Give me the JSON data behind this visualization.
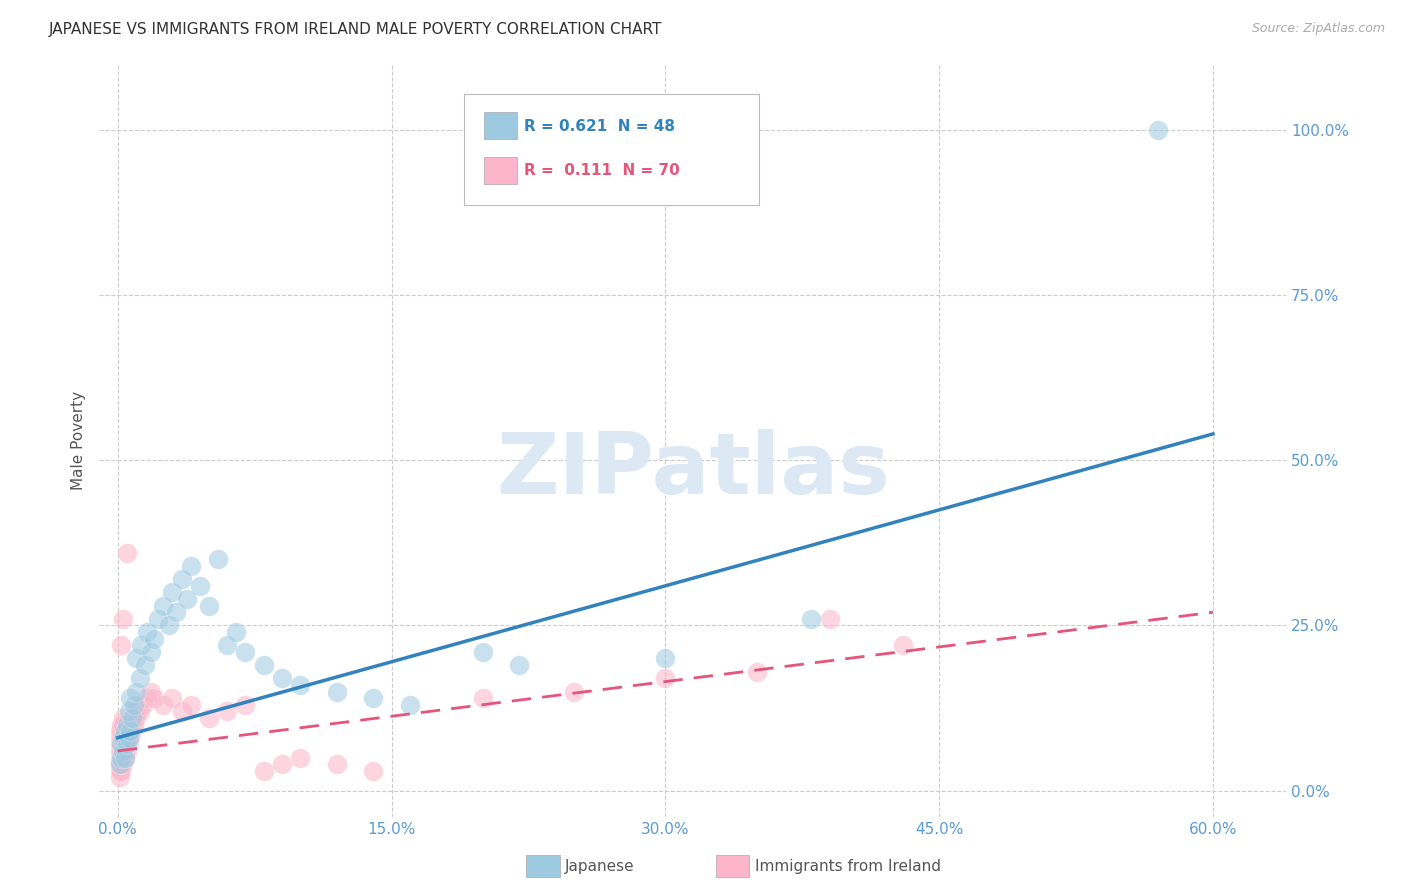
{
  "title": "JAPANESE VS IMMIGRANTS FROM IRELAND MALE POVERTY CORRELATION CHART",
  "source": "Source: ZipAtlas.com",
  "xlabel_ticks": [
    0.0,
    0.15,
    0.3,
    0.45,
    0.6
  ],
  "xlabel_labels": [
    "0.0%",
    "15.0%",
    "30.0%",
    "45.0%",
    "60.0%"
  ],
  "ylabel_ticks": [
    0.0,
    0.25,
    0.5,
    0.75,
    1.0
  ],
  "ylabel_labels": [
    "0.0%",
    "25.0%",
    "50.0%",
    "75.0%",
    "100.0%"
  ],
  "xlim": [
    -0.01,
    0.64
  ],
  "ylim": [
    -0.04,
    1.1
  ],
  "ylabel": "Male Poverty",
  "legend_japanese_R": "0.621",
  "legend_japanese_N": "48",
  "legend_ireland_R": "0.111",
  "legend_ireland_N": "70",
  "japanese_color": "#9ecae1",
  "ireland_color": "#fbb4c9",
  "japanese_line_color": "#3182bd",
  "ireland_line_color": "#e6547a",
  "watermark_text": "ZIPatlas",
  "japanese_points": [
    [
      0.001,
      0.04
    ],
    [
      0.002,
      0.05
    ],
    [
      0.002,
      0.07
    ],
    [
      0.003,
      0.06
    ],
    [
      0.003,
      0.08
    ],
    [
      0.004,
      0.05
    ],
    [
      0.004,
      0.09
    ],
    [
      0.005,
      0.07
    ],
    [
      0.005,
      0.1
    ],
    [
      0.006,
      0.08
    ],
    [
      0.006,
      0.12
    ],
    [
      0.007,
      0.09
    ],
    [
      0.007,
      0.14
    ],
    [
      0.008,
      0.11
    ],
    [
      0.009,
      0.13
    ],
    [
      0.01,
      0.15
    ],
    [
      0.01,
      0.2
    ],
    [
      0.012,
      0.17
    ],
    [
      0.013,
      0.22
    ],
    [
      0.015,
      0.19
    ],
    [
      0.016,
      0.24
    ],
    [
      0.018,
      0.21
    ],
    [
      0.02,
      0.23
    ],
    [
      0.022,
      0.26
    ],
    [
      0.025,
      0.28
    ],
    [
      0.028,
      0.25
    ],
    [
      0.03,
      0.3
    ],
    [
      0.032,
      0.27
    ],
    [
      0.035,
      0.32
    ],
    [
      0.038,
      0.29
    ],
    [
      0.04,
      0.34
    ],
    [
      0.045,
      0.31
    ],
    [
      0.05,
      0.28
    ],
    [
      0.055,
      0.35
    ],
    [
      0.06,
      0.22
    ],
    [
      0.065,
      0.24
    ],
    [
      0.07,
      0.21
    ],
    [
      0.08,
      0.19
    ],
    [
      0.09,
      0.17
    ],
    [
      0.1,
      0.16
    ],
    [
      0.12,
      0.15
    ],
    [
      0.14,
      0.14
    ],
    [
      0.16,
      0.13
    ],
    [
      0.2,
      0.21
    ],
    [
      0.22,
      0.19
    ],
    [
      0.3,
      0.2
    ],
    [
      0.38,
      0.26
    ],
    [
      0.57,
      1.0
    ]
  ],
  "ireland_points": [
    [
      0.001,
      0.02
    ],
    [
      0.001,
      0.03
    ],
    [
      0.001,
      0.04
    ],
    [
      0.001,
      0.05
    ],
    [
      0.001,
      0.06
    ],
    [
      0.001,
      0.07
    ],
    [
      0.001,
      0.08
    ],
    [
      0.001,
      0.09
    ],
    [
      0.002,
      0.03
    ],
    [
      0.002,
      0.04
    ],
    [
      0.002,
      0.05
    ],
    [
      0.002,
      0.06
    ],
    [
      0.002,
      0.07
    ],
    [
      0.002,
      0.08
    ],
    [
      0.002,
      0.09
    ],
    [
      0.002,
      0.1
    ],
    [
      0.003,
      0.04
    ],
    [
      0.003,
      0.05
    ],
    [
      0.003,
      0.06
    ],
    [
      0.003,
      0.07
    ],
    [
      0.003,
      0.08
    ],
    [
      0.003,
      0.09
    ],
    [
      0.003,
      0.1
    ],
    [
      0.003,
      0.11
    ],
    [
      0.004,
      0.05
    ],
    [
      0.004,
      0.06
    ],
    [
      0.004,
      0.07
    ],
    [
      0.004,
      0.08
    ],
    [
      0.004,
      0.09
    ],
    [
      0.005,
      0.06
    ],
    [
      0.005,
      0.07
    ],
    [
      0.005,
      0.08
    ],
    [
      0.005,
      0.36
    ],
    [
      0.006,
      0.07
    ],
    [
      0.006,
      0.08
    ],
    [
      0.006,
      0.09
    ],
    [
      0.007,
      0.08
    ],
    [
      0.007,
      0.09
    ],
    [
      0.007,
      0.1
    ],
    [
      0.008,
      0.09
    ],
    [
      0.008,
      0.1
    ],
    [
      0.009,
      0.1
    ],
    [
      0.009,
      0.11
    ],
    [
      0.01,
      0.11
    ],
    [
      0.01,
      0.12
    ],
    [
      0.012,
      0.12
    ],
    [
      0.014,
      0.13
    ],
    [
      0.016,
      0.14
    ],
    [
      0.018,
      0.15
    ],
    [
      0.02,
      0.14
    ],
    [
      0.025,
      0.13
    ],
    [
      0.03,
      0.14
    ],
    [
      0.035,
      0.12
    ],
    [
      0.04,
      0.13
    ],
    [
      0.05,
      0.11
    ],
    [
      0.06,
      0.12
    ],
    [
      0.07,
      0.13
    ],
    [
      0.08,
      0.03
    ],
    [
      0.09,
      0.04
    ],
    [
      0.1,
      0.05
    ],
    [
      0.12,
      0.04
    ],
    [
      0.14,
      0.03
    ],
    [
      0.2,
      0.14
    ],
    [
      0.25,
      0.15
    ],
    [
      0.3,
      0.17
    ],
    [
      0.35,
      0.18
    ],
    [
      0.39,
      0.26
    ],
    [
      0.43,
      0.22
    ],
    [
      0.002,
      0.22
    ],
    [
      0.003,
      0.26
    ]
  ],
  "japanese_reg_line": [
    [
      0.0,
      0.08
    ],
    [
      0.6,
      0.54
    ]
  ],
  "ireland_reg_line": [
    [
      0.0,
      0.06
    ],
    [
      0.6,
      0.27
    ]
  ],
  "background_color": "#ffffff",
  "grid_color": "#cccccc",
  "title_fontsize": 11,
  "axis_tick_color": "#5b9bd5",
  "watermark_color": "#dce9f5"
}
